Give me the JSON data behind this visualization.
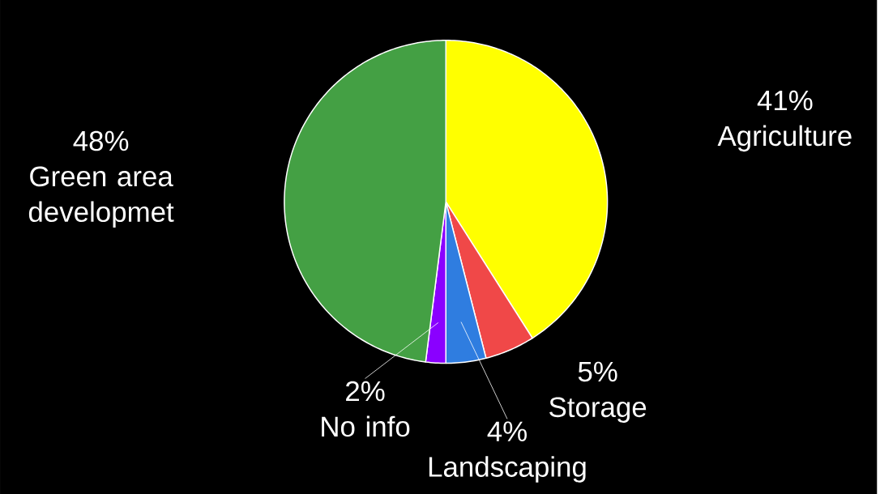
{
  "chart_data": {
    "type": "pie",
    "categories": [
      "Agriculture",
      "Storage",
      "Landscaping",
      "No info",
      "Green area developmet"
    ],
    "values": [
      41,
      5,
      4,
      2,
      48
    ],
    "value_labels": [
      "41%",
      "5%",
      "4%",
      "2%",
      "48%"
    ],
    "colors": [
      "#ffff00",
      "#f04848",
      "#2f7de0",
      "#8a00ff",
      "#44a044"
    ]
  }
}
